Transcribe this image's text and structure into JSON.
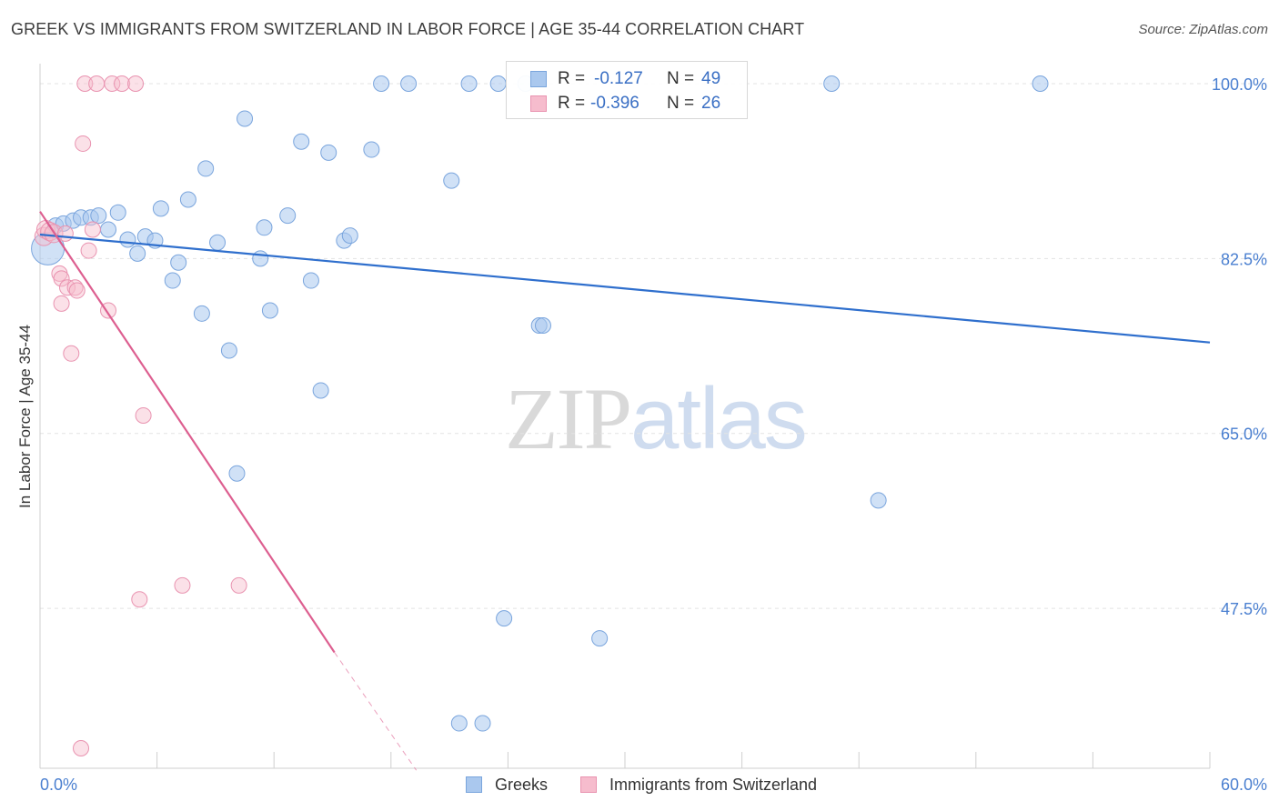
{
  "header": {
    "title": "GREEK VS IMMIGRANTS FROM SWITZERLAND IN LABOR FORCE | AGE 35-44 CORRELATION CHART",
    "source": "Source: ZipAtlas.com"
  },
  "watermark": {
    "zip": "ZIP",
    "atlas": "atlas"
  },
  "legend_top": {
    "r_label": "R =",
    "n_label": "N =",
    "rows": [
      {
        "r": "-0.127",
        "n": "49"
      },
      {
        "r": "-0.396",
        "n": "26"
      }
    ]
  },
  "legend_bottom": [
    "Greeks",
    "Immigrants from Switzerland"
  ],
  "colors": {
    "greeks_fill": "#aac8ee",
    "greeks_stroke": "#7aa5dd",
    "greeks_line": "#2f6fcd",
    "swiss_fill": "#f6bccd",
    "swiss_stroke": "#e993b0",
    "swiss_line": "#dd5f90",
    "tick_label": "#4a7fd0",
    "grid": "#e3e3e3"
  },
  "chart_data": {
    "type": "scatter",
    "title": "GREEK VS IMMIGRANTS FROM SWITZERLAND IN LABOR FORCE | AGE 35-44 CORRELATION CHART",
    "ylabel": "In Labor Force | Age 35-44",
    "xlabel": "",
    "x_tick_labels": [
      "0.0%",
      "60.0%"
    ],
    "y_tick_labels": [
      "100.0%",
      "82.5%",
      "65.0%",
      "47.5%"
    ],
    "y_ticks": [
      100.0,
      82.5,
      65.0,
      47.5
    ],
    "xlim": [
      0,
      60
    ],
    "ylim": [
      31.5,
      102
    ],
    "grid": true,
    "legend_position": "top-center",
    "series": [
      {
        "name": "Greeks",
        "r": -0.127,
        "n": 49,
        "trend": {
          "x1": 0,
          "y1": 84.9,
          "x2": 60,
          "y2": 74.1
        },
        "points": [
          [
            0.4,
            83.5
          ],
          [
            0.8,
            85.8
          ],
          [
            1.2,
            86.0
          ],
          [
            1.7,
            86.3
          ],
          [
            2.1,
            86.6
          ],
          [
            2.6,
            86.6
          ],
          [
            3.0,
            86.8
          ],
          [
            3.5,
            85.4
          ],
          [
            4.0,
            87.1
          ],
          [
            4.5,
            84.4
          ],
          [
            5.0,
            83.0
          ],
          [
            5.4,
            84.7
          ],
          [
            5.9,
            84.3
          ],
          [
            6.2,
            87.5
          ],
          [
            6.8,
            80.3
          ],
          [
            7.1,
            82.1
          ],
          [
            7.6,
            88.4
          ],
          [
            8.3,
            77.0
          ],
          [
            8.5,
            91.5
          ],
          [
            9.1,
            84.1
          ],
          [
            9.7,
            73.3
          ],
          [
            10.1,
            61.0
          ],
          [
            10.5,
            96.5
          ],
          [
            11.3,
            82.5
          ],
          [
            11.5,
            85.6
          ],
          [
            11.8,
            77.3
          ],
          [
            12.7,
            86.8
          ],
          [
            13.4,
            94.2
          ],
          [
            13.9,
            80.3
          ],
          [
            14.4,
            69.3
          ],
          [
            14.8,
            93.1
          ],
          [
            15.6,
            84.3
          ],
          [
            15.9,
            84.8
          ],
          [
            17.0,
            93.4
          ],
          [
            17.5,
            100.0
          ],
          [
            18.9,
            100.0
          ],
          [
            21.1,
            90.3
          ],
          [
            21.5,
            36.0
          ],
          [
            22.0,
            100.0
          ],
          [
            22.7,
            36.0
          ],
          [
            23.5,
            100.0
          ],
          [
            23.8,
            46.5
          ],
          [
            24.9,
            100.0
          ],
          [
            25.6,
            75.8
          ],
          [
            25.8,
            75.8
          ],
          [
            28.7,
            44.5
          ],
          [
            40.6,
            100.0
          ],
          [
            43.0,
            58.3
          ],
          [
            51.3,
            100.0
          ]
        ]
      },
      {
        "name": "Immigrants from Switzerland",
        "r": -0.396,
        "n": 26,
        "trend": {
          "x1": 0,
          "y1": 87.2,
          "x2": 15.1,
          "y2": 43.1
        },
        "trend_extension": {
          "x1": 15.1,
          "y1": 43.1,
          "x2": 19.3,
          "y2": 31.3
        },
        "points": [
          [
            0.2,
            84.7
          ],
          [
            0.3,
            85.4
          ],
          [
            0.5,
            85.2
          ],
          [
            0.7,
            85.0
          ],
          [
            1.0,
            81.0
          ],
          [
            1.1,
            80.5
          ],
          [
            1.1,
            78.0
          ],
          [
            1.3,
            85.0
          ],
          [
            1.4,
            79.6
          ],
          [
            1.6,
            73.0
          ],
          [
            1.8,
            79.6
          ],
          [
            1.9,
            79.3
          ],
          [
            2.1,
            33.5
          ],
          [
            2.2,
            94.0
          ],
          [
            2.3,
            100.0
          ],
          [
            2.5,
            83.3
          ],
          [
            2.7,
            85.4
          ],
          [
            2.9,
            100.0
          ],
          [
            3.5,
            77.3
          ],
          [
            3.7,
            100.0
          ],
          [
            4.2,
            100.0
          ],
          [
            4.9,
            100.0
          ],
          [
            5.1,
            48.4
          ],
          [
            5.3,
            66.8
          ],
          [
            7.3,
            49.8
          ],
          [
            10.2,
            49.8
          ]
        ]
      }
    ]
  }
}
